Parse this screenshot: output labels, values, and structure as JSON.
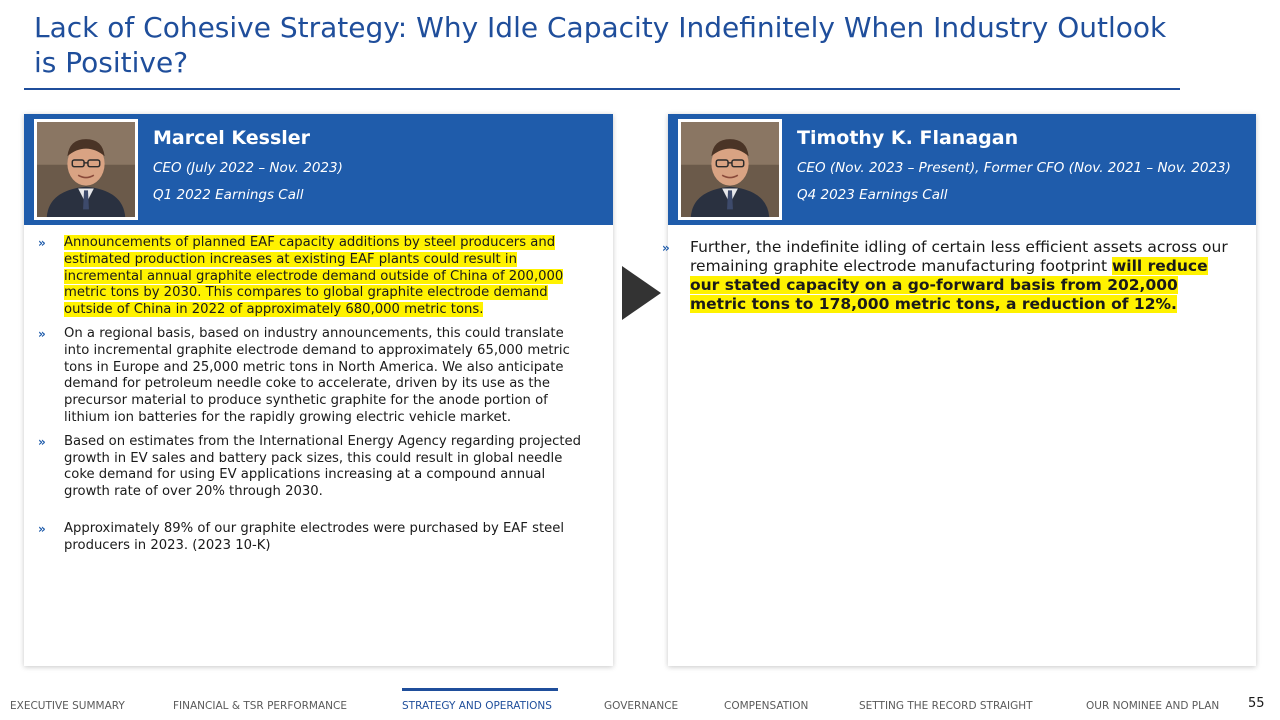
{
  "title": "Lack of Cohesive Strategy: Why Idle Capacity Indefinitely When Industry Outlook is Positive?",
  "left_panel": {
    "name": "Marcel Kessler",
    "role": "CEO (July 2022 – Nov. 2023)",
    "source": "Q1 2022 Earnings Call",
    "bullets": [
      "Announcements of planned EAF capacity additions by steel producers and estimated production increases at existing EAF plants could result in incremental annual graphite electrode demand outside of China of 200,000 metric tons by 2030. This compares to global graphite electrode demand outside of China in 2022 of approximately 680,000 metric tons.",
      "On a regional basis, based on industry announcements, this could translate into incremental graphite electrode demand to approximately 65,000 metric tons in Europe and 25,000 metric tons in North America. We also anticipate demand for petroleum needle coke to accelerate, driven by its use as the precursor material to produce synthetic graphite for the anode portion of lithium ion batteries for the rapidly growing electric vehicle market.",
      "Based on estimates from the International Energy Agency regarding projected growth in EV sales and battery pack sizes, this could result in global needle coke demand for using EV applications increasing at a compound annual growth rate of over 20% through 2030.",
      "Approximately 89% of our graphite electrodes were purchased by EAF steel producers in 2023. (2023 10-K)"
    ]
  },
  "right_panel": {
    "name": "Timothy K. Flanagan",
    "role": "CEO (Nov. 2023 – Present), Former CFO (Nov. 2021 – Nov. 2023)",
    "source": "Q4 2023 Earnings Call",
    "bullet_plain": "Further, the indefinite idling of certain less efficient assets across our remaining graphite electrode manufacturing footprint ",
    "bullet_highlight": "will reduce our stated capacity on a go-forward basis from 202,000 metric tons to 178,000 metric tons, a reduction of 12%."
  },
  "bullet_marker": "»",
  "nav": {
    "items": [
      "EXECUTIVE SUMMARY",
      "FINANCIAL & TSR PERFORMANCE",
      "STRATEGY AND OPERATIONS",
      "GOVERNANCE",
      "COMPENSATION",
      "SETTING THE RECORD STRAIGHT",
      "OUR NOMINEE AND PLAN"
    ],
    "active": "STRATEGY AND OPERATIONS"
  },
  "page_number": "55",
  "colors": {
    "title_blue": "#1f4e9b",
    "header_blue": "#1f5cab",
    "highlight": "#fff200",
    "arrow": "#333333"
  },
  "icons": {
    "arrow": "right-triangle-arrow",
    "photo": "person-portrait"
  }
}
